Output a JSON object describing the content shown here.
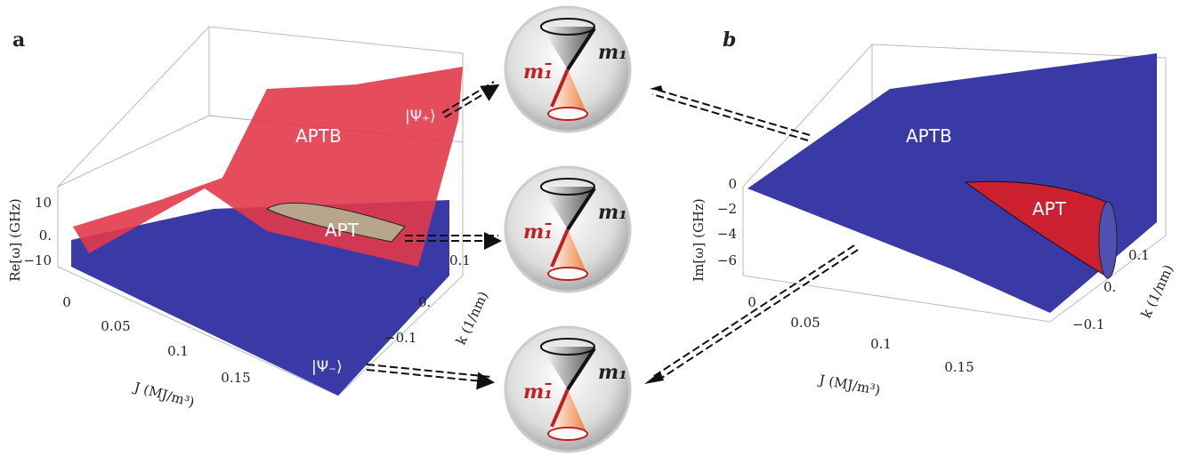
{
  "panels": [
    {
      "label": "a",
      "annotations": {
        "upper_surface": "APTB",
        "middle_region": "APT",
        "upper_state": "|Ψ₊⟩",
        "lower_state": "|Ψ₋⟩"
      },
      "z_axis": {
        "label": "Re[ω] (GHz)",
        "ticks": [
          "10",
          "0.",
          "−10"
        ]
      },
      "x_axis": {
        "label": "J (MJ/m³)",
        "ticks": [
          "0",
          "0.05",
          "0.1",
          "0.15"
        ]
      },
      "y_axis": {
        "label": "k (1/nm)",
        "ticks": [
          "0.1",
          "0.",
          "−0.1"
        ]
      }
    },
    {
      "label": "b",
      "annotations": {
        "plane": "APTB",
        "cone": "APT"
      },
      "z_axis": {
        "label": "Im[ω] (GHz)",
        "ticks": [
          "0",
          "−2",
          "−4",
          "−6"
        ]
      },
      "x_axis": {
        "label": "J (MJ/m³)",
        "ticks": [
          "0",
          "0.05",
          "0.1",
          "0.15"
        ]
      },
      "y_axis": {
        "label": "k (1/nm)",
        "ticks": [
          "0.1",
          "0.",
          "−0.1"
        ]
      }
    }
  ],
  "spheres": [
    {
      "vector_1": "m₁",
      "vector_2": "m₁̄"
    },
    {
      "vector_1": "m₁",
      "vector_2": "m₁̄"
    },
    {
      "vector_1": "m₁",
      "vector_2": "m₁̄"
    }
  ]
}
